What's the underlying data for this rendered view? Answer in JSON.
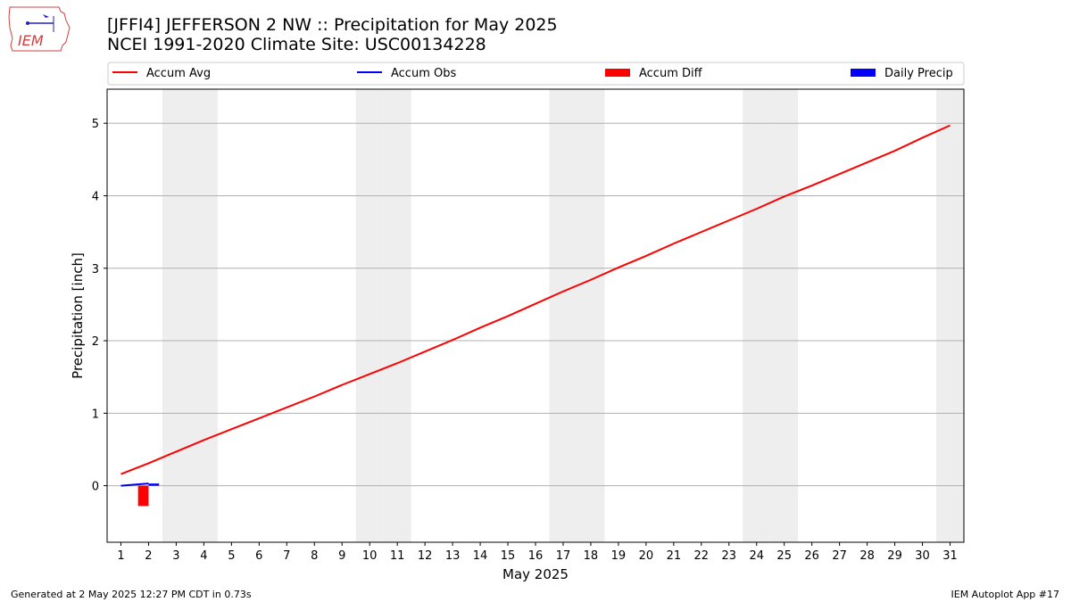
{
  "header": {
    "title_line1": "[JFFI4] JEFFERSON 2 NW :: Precipitation for May 2025",
    "title_line2": "NCEI 1991-2020 Climate Site: USC00134228",
    "logo_text": "IEM"
  },
  "footer": {
    "generated": "Generated at 2 May 2025 12:27 PM CDT in 0.73s",
    "app": "IEM Autoplot App #17"
  },
  "chart_data": {
    "type": "line",
    "xlabel": "May 2025",
    "ylabel": "Precipitation [inch]",
    "xlim": [
      0.5,
      31.5
    ],
    "ylim": [
      -0.78,
      5.47
    ],
    "x_ticks": [
      1,
      2,
      3,
      4,
      5,
      6,
      7,
      8,
      9,
      10,
      11,
      12,
      13,
      14,
      15,
      16,
      17,
      18,
      19,
      20,
      21,
      22,
      23,
      24,
      25,
      26,
      27,
      28,
      29,
      30,
      31
    ],
    "y_ticks": [
      0,
      1,
      2,
      3,
      4,
      5
    ],
    "grid": "horizontal",
    "legend_position": "top",
    "weekend_shading_days": [
      3,
      4,
      10,
      11,
      17,
      18,
      24,
      25,
      31
    ],
    "colors": {
      "accum_avg": "#ff0000",
      "accum_obs": "#0000ff",
      "accum_diff": "#ff0000",
      "daily_precip": "#0000ff",
      "weekend_shade": "#eeeeee",
      "grid": "#b0b0b0"
    },
    "legend": [
      {
        "label": "Accum Avg",
        "kind": "line",
        "color": "#ff0000"
      },
      {
        "label": "Accum Obs",
        "kind": "line",
        "color": "#0000ff"
      },
      {
        "label": "Accum Diff",
        "kind": "bar",
        "color": "#ff0000"
      },
      {
        "label": "Daily Precip",
        "kind": "bar",
        "color": "#0000ff"
      }
    ],
    "series": [
      {
        "name": "Accum Avg",
        "type": "line",
        "x": [
          1,
          2,
          3,
          4,
          5,
          6,
          7,
          8,
          9,
          10,
          11,
          12,
          13,
          14,
          15,
          16,
          17,
          18,
          19,
          20,
          21,
          22,
          23,
          24,
          25,
          26,
          27,
          28,
          29,
          30,
          31
        ],
        "values": [
          0.16,
          0.31,
          0.47,
          0.63,
          0.78,
          0.93,
          1.08,
          1.23,
          1.39,
          1.54,
          1.69,
          1.85,
          2.01,
          2.18,
          2.34,
          2.51,
          2.68,
          2.84,
          3.01,
          3.17,
          3.34,
          3.5,
          3.66,
          3.82,
          3.99,
          4.14,
          4.3,
          4.46,
          4.62,
          4.8,
          4.97
        ]
      },
      {
        "name": "Accum Obs",
        "type": "line",
        "x": [
          1,
          2
        ],
        "values": [
          0.0,
          0.03
        ]
      },
      {
        "name": "Accum Diff",
        "type": "bar",
        "x": [
          2
        ],
        "values": [
          -0.28
        ]
      },
      {
        "name": "Daily Precip",
        "type": "bar",
        "x": [
          2
        ],
        "values": [
          0.03
        ]
      }
    ]
  }
}
